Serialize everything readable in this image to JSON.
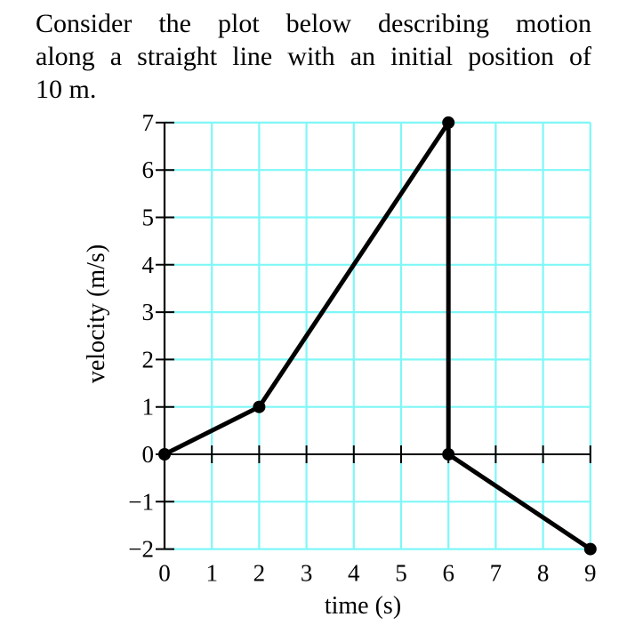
{
  "problem": {
    "intro_lines": [
      "Consider the plot below describing motion",
      "along a straight line with an initial position of",
      "10 m."
    ]
  },
  "colors": {
    "grid": "#7ff7f7",
    "axis": "#000000",
    "series": "#000000"
  },
  "chart_data": {
    "type": "line",
    "title": "",
    "xlabel": "time (s)",
    "ylabel": "velocity (m/s)",
    "xlim": [
      0,
      9
    ],
    "ylim": [
      -2,
      7
    ],
    "grid": true,
    "x_ticks": [
      "0",
      "1",
      "2",
      "3",
      "4",
      "5",
      "6",
      "7",
      "8",
      "9"
    ],
    "y_ticks": [
      "−2",
      "−1",
      "0",
      "1",
      "2",
      "3",
      "4",
      "5",
      "6",
      "7"
    ],
    "series": [
      {
        "name": "velocity",
        "points": [
          [
            0,
            0
          ],
          [
            2,
            1
          ],
          [
            6,
            7
          ],
          [
            6,
            0
          ],
          [
            9,
            -2
          ]
        ],
        "markers": [
          [
            0,
            0
          ],
          [
            2,
            1
          ],
          [
            6,
            7
          ],
          [
            6,
            0
          ],
          [
            9,
            -2
          ]
        ]
      }
    ]
  }
}
